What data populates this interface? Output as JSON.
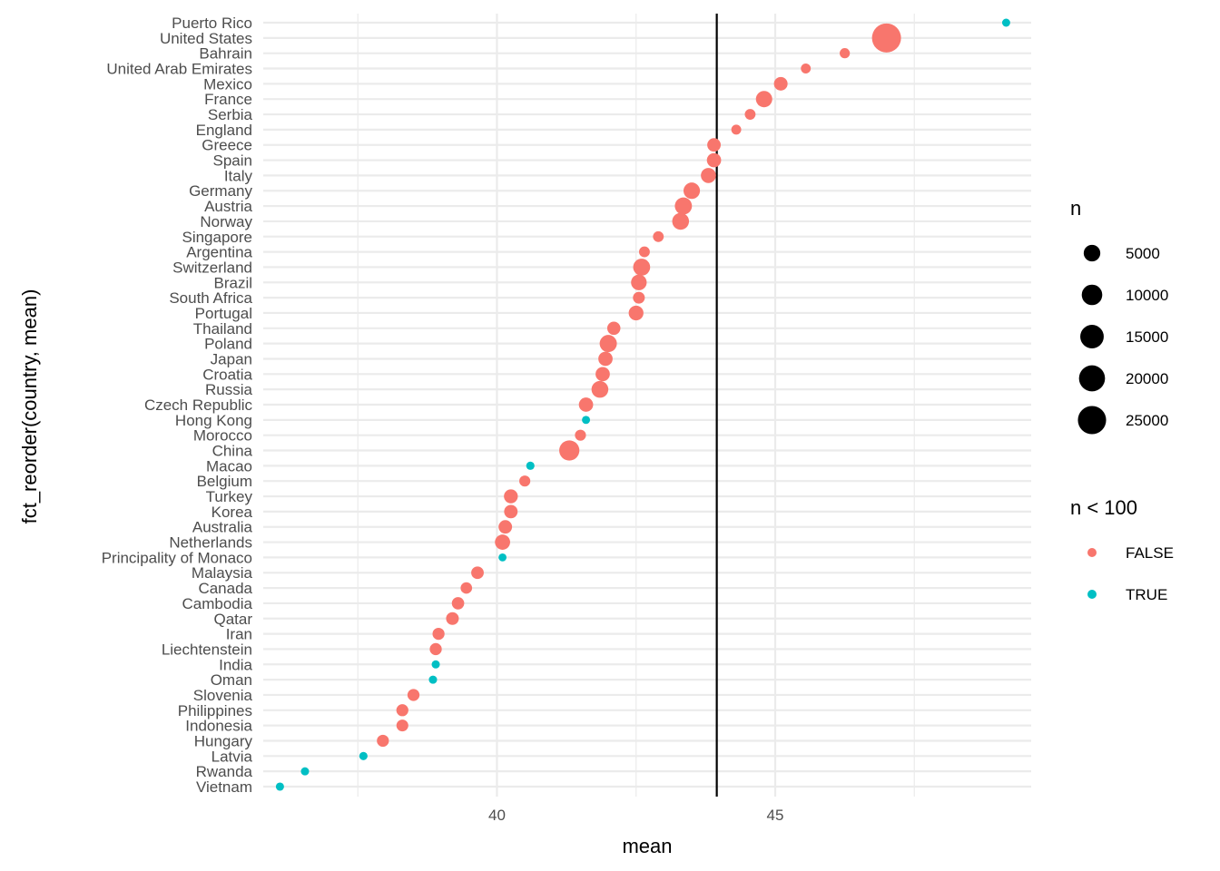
{
  "chart_data": {
    "type": "scatter",
    "xlabel": "mean",
    "ylabel": "fct_reorder(country, mean)",
    "xlim": [
      35.8,
      49.6
    ],
    "xticks": [
      40,
      45
    ],
    "vline": 43.95,
    "grid": "on",
    "legend_position": "right",
    "colors": {
      "FALSE": "#F8766D",
      "TRUE": "#00BFC4",
      "reference_line": "#000000"
    },
    "size_legend": {
      "title": "n",
      "labels": [
        "5000",
        "10000",
        "15000",
        "20000",
        "25000"
      ],
      "values": [
        5000,
        10000,
        15000,
        20000,
        25000
      ]
    },
    "color_legend": {
      "title": "n < 100",
      "labels": [
        "FALSE",
        "TRUE"
      ]
    },
    "countries": [
      "Puerto Rico",
      "United States",
      "Bahrain",
      "United Arab Emirates",
      "Mexico",
      "France",
      "Serbia",
      "England",
      "Greece",
      "Spain",
      "Italy",
      "Germany",
      "Austria",
      "Norway",
      "Singapore",
      "Argentina",
      "Switzerland",
      "Brazil",
      "South Africa",
      "Portugal",
      "Thailand",
      "Poland",
      "Japan",
      "Croatia",
      "Russia",
      "Czech Republic",
      "Hong Kong",
      "Morocco",
      "China",
      "Macao",
      "Belgium",
      "Turkey",
      "Korea",
      "Australia",
      "Netherlands",
      "Principality of Monaco",
      "Malaysia",
      "Canada",
      "Cambodia",
      "Qatar",
      "Iran",
      "Liechtenstein",
      "India",
      "Oman",
      "Slovenia",
      "Philippines",
      "Indonesia",
      "Hungary",
      "Latvia",
      "Rwanda",
      "Vietnam"
    ],
    "points": [
      {
        "country": "Puerto Rico",
        "mean": 49.15,
        "n": 40,
        "small": true
      },
      {
        "country": "United States",
        "mean": 47.0,
        "n": 27000,
        "small": false
      },
      {
        "country": "Bahrain",
        "mean": 46.25,
        "n": 500,
        "small": false
      },
      {
        "country": "United Arab Emirates",
        "mean": 45.55,
        "n": 400,
        "small": false
      },
      {
        "country": "Mexico",
        "mean": 45.1,
        "n": 2300,
        "small": false
      },
      {
        "country": "France",
        "mean": 44.8,
        "n": 4700,
        "small": false
      },
      {
        "country": "Serbia",
        "mean": 44.55,
        "n": 700,
        "small": false
      },
      {
        "country": "England",
        "mean": 44.3,
        "n": 400,
        "small": false
      },
      {
        "country": "Greece",
        "mean": 43.9,
        "n": 2200,
        "small": false
      },
      {
        "country": "Spain",
        "mean": 43.9,
        "n": 2800,
        "small": false
      },
      {
        "country": "Italy",
        "mean": 43.8,
        "n": 3500,
        "small": false
      },
      {
        "country": "Germany",
        "mean": 43.5,
        "n": 4800,
        "small": false
      },
      {
        "country": "Austria",
        "mean": 43.35,
        "n": 5500,
        "small": false
      },
      {
        "country": "Norway",
        "mean": 43.3,
        "n": 5200,
        "small": false
      },
      {
        "country": "Singapore",
        "mean": 42.9,
        "n": 700,
        "small": false
      },
      {
        "country": "Argentina",
        "mean": 42.65,
        "n": 700,
        "small": false
      },
      {
        "country": "Switzerland",
        "mean": 42.6,
        "n": 5400,
        "small": false
      },
      {
        "country": "Brazil",
        "mean": 42.55,
        "n": 4000,
        "small": false
      },
      {
        "country": "South Africa",
        "mean": 42.55,
        "n": 1200,
        "small": false
      },
      {
        "country": "Portugal",
        "mean": 42.5,
        "n": 3200,
        "small": false
      },
      {
        "country": "Thailand",
        "mean": 42.1,
        "n": 2000,
        "small": false
      },
      {
        "country": "Poland",
        "mean": 42.0,
        "n": 5600,
        "small": false
      },
      {
        "country": "Japan",
        "mean": 41.95,
        "n": 2800,
        "small": false
      },
      {
        "country": "Croatia",
        "mean": 41.9,
        "n": 2800,
        "small": false
      },
      {
        "country": "Russia",
        "mean": 41.85,
        "n": 5200,
        "small": false
      },
      {
        "country": "Czech Republic",
        "mean": 41.6,
        "n": 2800,
        "small": false
      },
      {
        "country": "Hong Kong",
        "mean": 41.6,
        "n": 40,
        "small": true
      },
      {
        "country": "Morocco",
        "mean": 41.5,
        "n": 800,
        "small": false
      },
      {
        "country": "China",
        "mean": 41.3,
        "n": 9500,
        "small": false
      },
      {
        "country": "Macao",
        "mean": 40.6,
        "n": 60,
        "small": true
      },
      {
        "country": "Belgium",
        "mean": 40.5,
        "n": 800,
        "small": false
      },
      {
        "country": "Turkey",
        "mean": 40.25,
        "n": 2500,
        "small": false
      },
      {
        "country": "Korea",
        "mean": 40.25,
        "n": 2200,
        "small": false
      },
      {
        "country": "Australia",
        "mean": 40.15,
        "n": 2200,
        "small": false
      },
      {
        "country": "Netherlands",
        "mean": 40.1,
        "n": 3600,
        "small": false
      },
      {
        "country": "Principality of Monaco",
        "mean": 40.1,
        "n": 30,
        "small": true
      },
      {
        "country": "Malaysia",
        "mean": 39.65,
        "n": 1600,
        "small": false
      },
      {
        "country": "Canada",
        "mean": 39.45,
        "n": 1000,
        "small": false
      },
      {
        "country": "Cambodia",
        "mean": 39.3,
        "n": 1500,
        "small": false
      },
      {
        "country": "Qatar",
        "mean": 39.2,
        "n": 1700,
        "small": false
      },
      {
        "country": "Iran",
        "mean": 38.95,
        "n": 1300,
        "small": false
      },
      {
        "country": "Liechtenstein",
        "mean": 38.9,
        "n": 1300,
        "small": false
      },
      {
        "country": "India",
        "mean": 38.9,
        "n": 50,
        "small": true
      },
      {
        "country": "Oman",
        "mean": 38.85,
        "n": 50,
        "small": true
      },
      {
        "country": "Slovenia",
        "mean": 38.5,
        "n": 1300,
        "small": false
      },
      {
        "country": "Philippines",
        "mean": 38.3,
        "n": 1300,
        "small": false
      },
      {
        "country": "Indonesia",
        "mean": 38.3,
        "n": 1200,
        "small": false
      },
      {
        "country": "Hungary",
        "mean": 37.95,
        "n": 1300,
        "small": false
      },
      {
        "country": "Latvia",
        "mean": 37.6,
        "n": 60,
        "small": true
      },
      {
        "country": "Rwanda",
        "mean": 36.55,
        "n": 50,
        "small": true
      },
      {
        "country": "Vietnam",
        "mean": 36.1,
        "n": 50,
        "small": true
      }
    ]
  }
}
